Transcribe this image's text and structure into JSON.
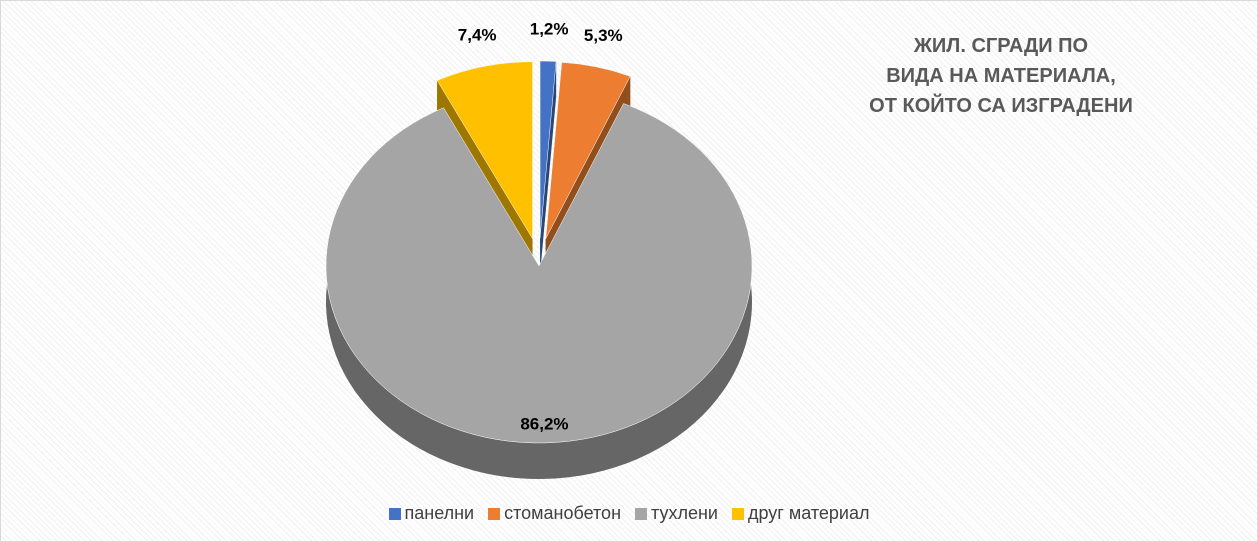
{
  "chart_data": {
    "type": "pie",
    "title": "ЖИЛ. СГРАДИ ПО\nВИДА НА МАТЕРИАЛА,\nОТ КОЙТО СА ИЗГРАДЕНИ",
    "categories": [
      "панелни",
      "стоманобетон",
      "тухлени",
      "друг материал"
    ],
    "values": [
      1.2,
      5.3,
      86.2,
      7.4
    ],
    "value_labels": [
      "1,2%",
      "5,3%",
      "86,2%",
      "7,4%"
    ],
    "colors": [
      "#4472c4",
      "#ed7d31",
      "#a5a5a5",
      "#ffc000"
    ],
    "legend": "bottom"
  }
}
